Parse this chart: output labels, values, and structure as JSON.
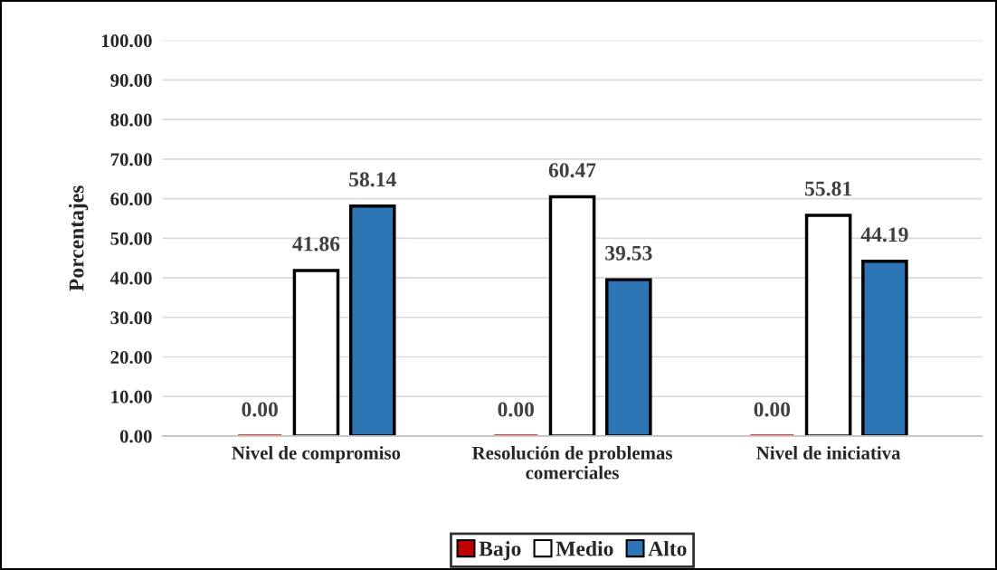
{
  "chart_data": {
    "type": "bar",
    "ylabel": "Porcentajes",
    "categories": [
      "Nivel de compromiso",
      "Resolución de problemas\ncomerciales",
      "Nivel de iniciativa"
    ],
    "series": [
      {
        "name": "Bajo",
        "color": "#c00000",
        "values": [
          0,
          0,
          0
        ],
        "value_labels": [
          "0.00",
          "0.00",
          "0.00"
        ]
      },
      {
        "name": "Medio",
        "color": "#ffffff",
        "values": [
          41.86,
          60.47,
          55.81
        ],
        "value_labels": [
          "41.86",
          "60.47",
          "55.81"
        ]
      },
      {
        "name": "Alto",
        "color": "#2e75b6",
        "values": [
          58.14,
          39.53,
          44.19
        ],
        "value_labels": [
          "58.14",
          "39.53",
          "44.19"
        ]
      }
    ],
    "ylim": [
      0,
      100
    ],
    "yticks": [
      {
        "value": 0,
        "label": "0.00"
      },
      {
        "value": 10,
        "label": "10.00"
      },
      {
        "value": 20,
        "label": "20.00"
      },
      {
        "value": 30,
        "label": "30.00"
      },
      {
        "value": 40,
        "label": "40.00"
      },
      {
        "value": 50,
        "label": "50.00"
      },
      {
        "value": 60,
        "label": "60.00"
      },
      {
        "value": 70,
        "label": "70.00"
      },
      {
        "value": 80,
        "label": "80.00"
      },
      {
        "value": 90,
        "label": "90.00"
      },
      {
        "value": 100,
        "label": "100.00"
      }
    ],
    "grid": "y",
    "legend": "bottom"
  }
}
